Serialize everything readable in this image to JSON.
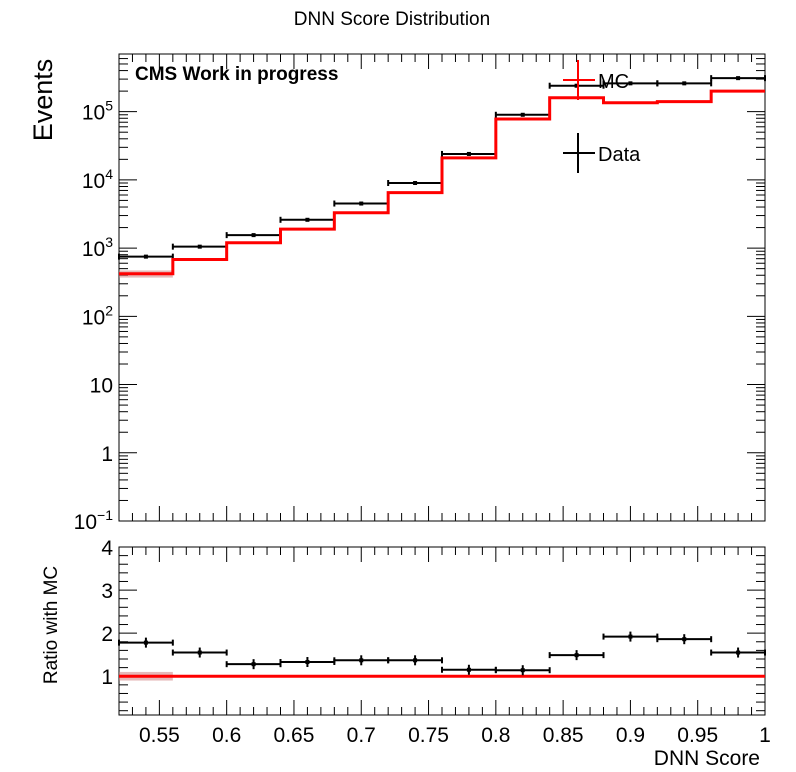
{
  "title": "DNN Score Distribution",
  "chart_data": [
    {
      "type": "step",
      "panel": "main",
      "xlabel": "",
      "ylabel": "Events",
      "yscale": "log",
      "xlim": [
        0.52,
        1.0
      ],
      "ylim": [
        0.1,
        700000
      ],
      "x_ticks": [
        "0.55",
        "0.6",
        "0.65",
        "0.7",
        "0.75",
        "0.8",
        "0.85",
        "0.9",
        "0.95",
        "1"
      ],
      "y_ticks": [
        {
          "value": 0.1,
          "base": "10",
          "exp": "−1"
        },
        {
          "value": 1,
          "base": "1",
          "exp": ""
        },
        {
          "value": 10,
          "base": "10",
          "exp": ""
        },
        {
          "value": 100,
          "base": "10",
          "exp": "2"
        },
        {
          "value": 1000,
          "base": "10",
          "exp": "3"
        },
        {
          "value": 10000,
          "base": "10",
          "exp": "4"
        },
        {
          "value": 100000,
          "base": "10",
          "exp": "5"
        }
      ],
      "annotation": "CMS Work in progress",
      "legend": [
        {
          "label": "MC",
          "color": "#ff0000"
        },
        {
          "label": "Data",
          "color": "#000000"
        }
      ],
      "legend_position": "top-right",
      "bin_edges": [
        0.52,
        0.56,
        0.6,
        0.64,
        0.68,
        0.72,
        0.76,
        0.8,
        0.84,
        0.88,
        0.92,
        0.96,
        1.0
      ],
      "series": [
        {
          "name": "MC",
          "color": "#ff0000",
          "style": "step",
          "values": [
            420,
            680,
            1200,
            1900,
            3300,
            6500,
            21000,
            78000,
            160000,
            135000,
            140000,
            200000
          ]
        },
        {
          "name": "Data",
          "color": "#000000",
          "style": "errorbar",
          "values": [
            750,
            1050,
            1550,
            2600,
            4500,
            9000,
            24000,
            90000,
            240000,
            260000,
            260000,
            310000
          ]
        }
      ]
    },
    {
      "type": "step",
      "panel": "ratio",
      "xlabel": "DNN Score",
      "ylabel": "Ratio with MC",
      "xlim": [
        0.52,
        1.0
      ],
      "ylim": [
        0.1,
        4.0
      ],
      "x_ticks": [
        "0.55",
        "0.6",
        "0.65",
        "0.7",
        "0.75",
        "0.8",
        "0.85",
        "0.9",
        "0.95",
        "1"
      ],
      "y_ticks": [
        "1",
        "2",
        "3",
        "4"
      ],
      "bin_edges": [
        0.52,
        0.56,
        0.6,
        0.64,
        0.68,
        0.72,
        0.76,
        0.8,
        0.84,
        0.88,
        0.92,
        0.96,
        1.0
      ],
      "series": [
        {
          "name": "Ratio",
          "color": "#000000",
          "style": "errorbar",
          "values": [
            1.78,
            1.55,
            1.28,
            1.33,
            1.37,
            1.37,
            1.15,
            1.14,
            1.49,
            1.92,
            1.86,
            1.55
          ]
        },
        {
          "name": "Unity",
          "color": "#ff0000",
          "style": "line",
          "values": [
            1.0
          ]
        }
      ]
    }
  ],
  "colors": {
    "mc": "#ff0000",
    "data": "#000000",
    "band": "#d08080"
  }
}
